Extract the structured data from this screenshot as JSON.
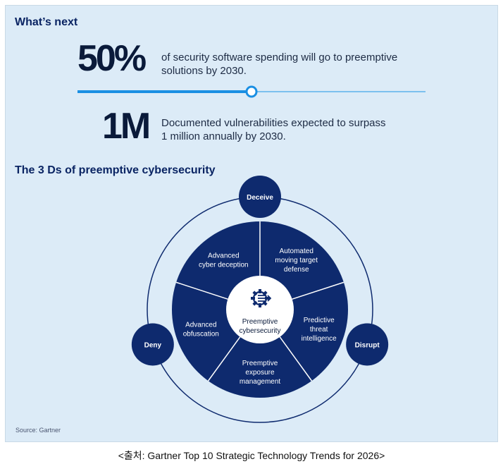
{
  "header": {
    "title": "What’s next"
  },
  "stats": [
    {
      "value": "50%",
      "text_line1": "of security software spending will go to preemptive",
      "text_line2": "solutions by 2030."
    },
    {
      "value": "1M",
      "text_line1": "Documented vulnerabilities expected to surpass",
      "text_line2": "1 million annually by 2030."
    }
  ],
  "progress": {
    "fraction": 0.5
  },
  "diagram": {
    "title": "The 3 Ds of preemptive cybersecurity",
    "center": {
      "line1": "Preemptive",
      "line2": "cybersecurity",
      "icon": "gear-arrows-icon"
    },
    "ds": [
      "Deceive",
      "Disrupt",
      "Deny"
    ],
    "segments": [
      {
        "lines": [
          "Advanced",
          "cyber deception"
        ]
      },
      {
        "lines": [
          "Automated",
          "moving target",
          "defense"
        ]
      },
      {
        "lines": [
          "Predictive",
          "threat",
          "intelligence"
        ]
      },
      {
        "lines": [
          "Preemptive",
          "exposure",
          "management"
        ]
      },
      {
        "lines": [
          "Advanced",
          "obfuscation"
        ]
      }
    ]
  },
  "footer": {
    "source": "Source: Gartner"
  },
  "caption": "<출처: Gartner Top 10 Strategic Technology Trends for 2026>",
  "colors": {
    "navy": "#0e2a6e",
    "accent": "#1a8fe3",
    "background": "#dcebf7"
  }
}
